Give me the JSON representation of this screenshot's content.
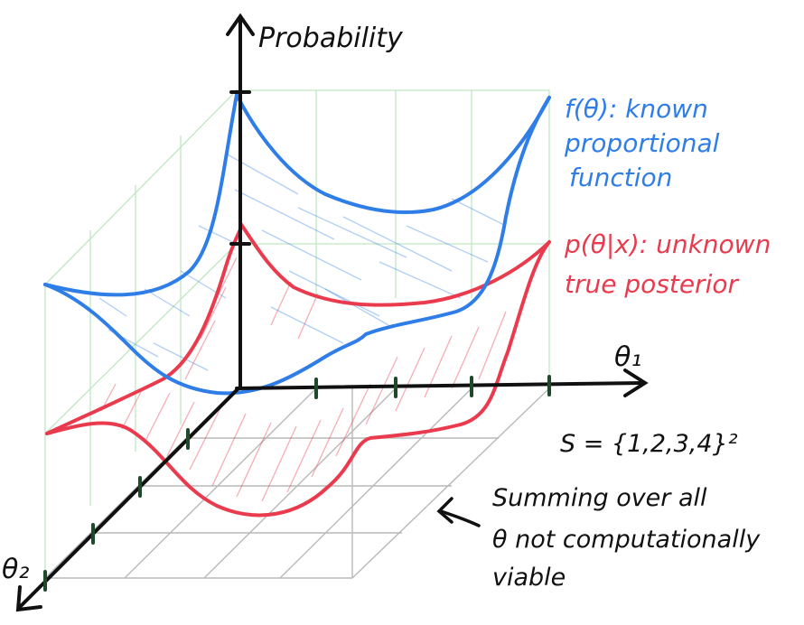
{
  "axes": {
    "vertical_label": "Probability",
    "x_label": "θ₁",
    "y_label": "θ₂"
  },
  "annotations": {
    "known_function": [
      "f(θ): known",
      "proportional",
      "function"
    ],
    "true_posterior": [
      "p(θ|x): unknown",
      "true posterior"
    ],
    "set_definition": "S = {1,2,3,4}²",
    "summing_note": [
      "Summing over all",
      "θ not computationally",
      "viable"
    ]
  },
  "colors": {
    "known_function": "#2f7ee8",
    "true_posterior": "#ea3b4e",
    "guide_lines": "#bfe6c1",
    "floor_grid": "#b9b9b9",
    "axes": "#111111"
  }
}
